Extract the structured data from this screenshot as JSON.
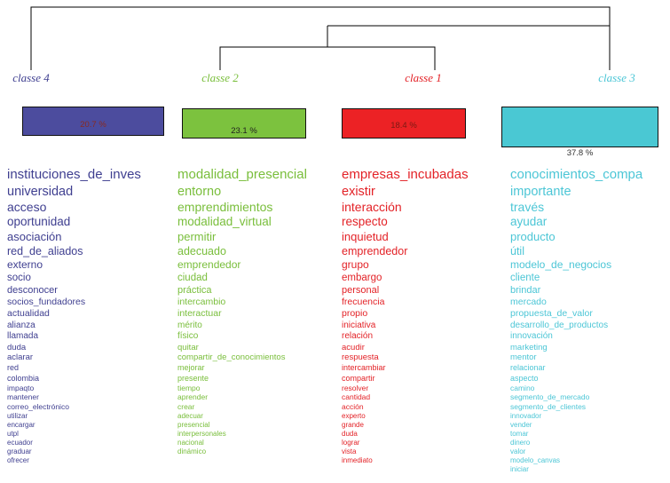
{
  "chart_data": {
    "type": "bar",
    "categories": [
      "classe 4",
      "classe 2",
      "classe 1",
      "classe 3"
    ],
    "values": [
      20.7,
      23.1,
      18.4,
      37.8
    ],
    "legend_position": "none",
    "grid": false,
    "classes": [
      {
        "id": "classe-4",
        "label": "classe 4",
        "percent_label": "20.7 %",
        "percent_value": 20.7,
        "bar_color": "#4C4C9E",
        "text_color": "#3F3F90",
        "percent_color": "#8A2A20",
        "words": [
          "instituciones_de_inves",
          "universidad",
          "acceso",
          "oportunidad",
          "asociación",
          "red_de_aliados",
          "externo",
          "socio",
          "desconocer",
          "socios_fundadores",
          "actualidad",
          "alianza",
          "llamada",
          "duda",
          "aclarar",
          "red",
          "colombia",
          "impaqto",
          "mantener",
          "correo_electrónico",
          "utilizar",
          "encargar",
          "utpl",
          "ecuador",
          "graduar",
          "ofrecer"
        ]
      },
      {
        "id": "classe-2",
        "label": "classe 2",
        "percent_label": "23.1 %",
        "percent_value": 23.1,
        "bar_color": "#7CC23E",
        "text_color": "#79BE3B",
        "percent_color": "#1F1F1F",
        "words": [
          "modalidad_presencial",
          "entorno",
          "emprendimientos",
          "modalidad_virtual",
          "permitir",
          "adecuado",
          "emprendedor",
          "ciudad",
          "práctica",
          "intercambio",
          "interactuar",
          "mérito",
          "físico",
          "quitar",
          "compartir_de_conocimientos",
          "mejorar",
          "presente",
          "tiempo",
          "aprender",
          "crear",
          "adecuar",
          "presencial",
          "interpersonales",
          "nacional",
          "dinámico"
        ]
      },
      {
        "id": "classe-1",
        "label": "classe 1",
        "percent_label": "18.4 %",
        "percent_value": 18.4,
        "bar_color": "#EC2225",
        "text_color": "#E32227",
        "percent_color": "#7A1A14",
        "words": [
          "empresas_incubadas",
          "existir",
          "interacción",
          "respecto",
          "inquietud",
          "emprendedor",
          "grupo",
          "embargo",
          "personal",
          "frecuencia",
          "propio",
          "iniciativa",
          "relación",
          "acudir",
          "respuesta",
          "intercambiar",
          "compartir",
          "resolver",
          "cantidad",
          "acción",
          "experto",
          "grande",
          "duda",
          "lograr",
          "vista",
          "inmediato"
        ]
      },
      {
        "id": "classe-3",
        "label": "classe 3",
        "percent_label": "37.8 %",
        "percent_value": 37.8,
        "bar_color": "#4AC8D3",
        "text_color": "#4CC6D6",
        "percent_color": "#333333",
        "words": [
          "conocimientos_compa",
          "importante",
          "través",
          "ayudar",
          "producto",
          "útil",
          "modelo_de_negocios",
          "cliente",
          "brindar",
          "mercado",
          "propuesta_de_valor",
          "desarrollo_de_productos",
          "innovación",
          "marketing",
          "mentor",
          "relacionar",
          "aspecto",
          "camino",
          "segmento_de_mercado",
          "segmento_de_clientes",
          "innovador",
          "vender",
          "tomar",
          "dinero",
          "valor",
          "modelo_canvas",
          "iniciar"
        ]
      }
    ]
  }
}
